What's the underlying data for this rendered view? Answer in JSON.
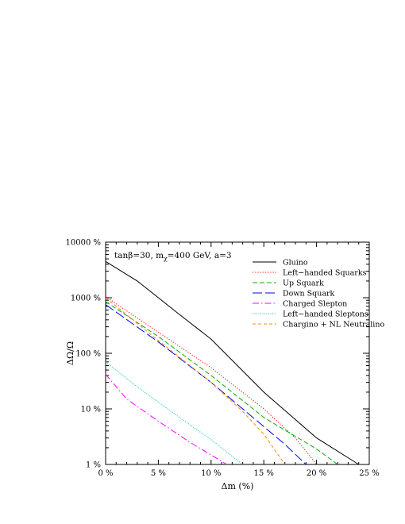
{
  "chart_data": {
    "type": "line",
    "xlabel": "Δm (%)",
    "ylabel": "ΔΩ/Ω",
    "xlim": [
      0,
      25
    ],
    "ylim": [
      1,
      10000
    ],
    "yscale": "log",
    "x_ticks": [
      0,
      5,
      10,
      15,
      20,
      25
    ],
    "x_tick_labels": [
      "0 %",
      "5 %",
      "10 %",
      "15 %",
      "20 %",
      "25 %"
    ],
    "y_ticks": [
      1,
      10,
      100,
      1000,
      10000
    ],
    "y_tick_labels": [
      "1 %",
      "10 %",
      "100 %",
      "1000 %",
      "10000 %"
    ],
    "annotation": {
      "prefix": "tanβ=30, m",
      "subscript": "χ",
      "suffix": "=400 GeV, a=3"
    },
    "legend_position": "top-right",
    "grid": false,
    "series": [
      {
        "name": "Gluino",
        "color": "#000000",
        "dash": "solid",
        "points": [
          [
            0,
            4500
          ],
          [
            3,
            2000
          ],
          [
            7,
            500
          ],
          [
            10,
            180
          ],
          [
            15,
            20
          ],
          [
            20,
            3.0
          ],
          [
            24,
            1.0
          ]
        ]
      },
      {
        "name": "Left−handed Squarks",
        "color": "#ff0000",
        "dash": "dotted",
        "points": [
          [
            0,
            1050
          ],
          [
            2.5,
            500
          ],
          [
            5,
            240
          ],
          [
            10,
            55
          ],
          [
            15,
            10
          ],
          [
            18,
            3
          ],
          [
            20,
            1.0
          ]
        ]
      },
      {
        "name": "Up Squark",
        "color": "#00b000",
        "dash": "medium",
        "points": [
          [
            0,
            850
          ],
          [
            5,
            200
          ],
          [
            10,
            40
          ],
          [
            15,
            7
          ],
          [
            20,
            1.9
          ],
          [
            22,
            1.0
          ]
        ]
      },
      {
        "name": "Down Squark",
        "color": "#0000ff",
        "dash": "long",
        "points": [
          [
            0,
            750
          ],
          [
            5,
            160
          ],
          [
            10,
            30
          ],
          [
            15,
            4.8
          ],
          [
            17,
            2.3
          ],
          [
            19,
            1.0
          ]
        ]
      },
      {
        "name": "Charged Slepton",
        "color": "#ff00ff",
        "dash": "dashdot",
        "points": [
          [
            0,
            42
          ],
          [
            2,
            15
          ],
          [
            5,
            6
          ],
          [
            8,
            2.5
          ],
          [
            11.5,
            1.0
          ]
        ]
      },
      {
        "name": "Left−handed Sleptons",
        "color": "#00bfbf",
        "dash": "fine",
        "points": [
          [
            0,
            70
          ],
          [
            3,
            25
          ],
          [
            7,
            7
          ],
          [
            10,
            2.8
          ],
          [
            13,
            1.0
          ]
        ]
      },
      {
        "name": "Chargino + NL Neutralino",
        "color": "#ff8c00",
        "dash": "short",
        "points": [
          [
            0,
            1000
          ],
          [
            5,
            170
          ],
          [
            10,
            30
          ],
          [
            13,
            9
          ],
          [
            15,
            3.5
          ],
          [
            17,
            1.0
          ]
        ]
      }
    ]
  }
}
